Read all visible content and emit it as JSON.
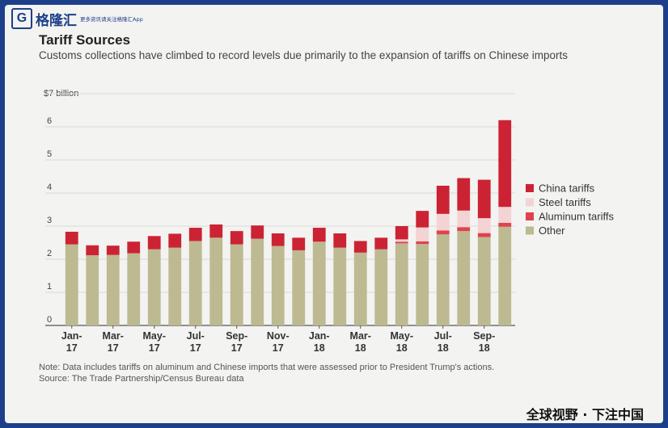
{
  "header": {
    "logo_mark": "G",
    "logo_name": "格隆汇",
    "logo_tagline": "更多资讯请关注格隆汇App",
    "logo_color": "#1d3f8a"
  },
  "footer": {
    "slogan": "全球视野 · 下注中国"
  },
  "chart_data": {
    "type": "bar",
    "stacked": true,
    "title": "Tariff Sources",
    "subtitle": "Customs collections have climbed to record levels due primarily to the expansion of tariffs on Chinese imports",
    "ylabel": "$7 billion",
    "ylim": [
      0,
      7
    ],
    "yticks": [
      "0",
      "1",
      "2",
      "3",
      "4",
      "5",
      "6"
    ],
    "grid": true,
    "legend_position": "right",
    "xtick_labels": [
      {
        "month": "Jan-",
        "year": "17",
        "index": 0
      },
      {
        "month": "Mar-",
        "year": "17",
        "index": 2
      },
      {
        "month": "May-",
        "year": "17",
        "index": 4
      },
      {
        "month": "Jul-",
        "year": "17",
        "index": 6
      },
      {
        "month": "Sep-",
        "year": "17",
        "index": 8
      },
      {
        "month": "Nov-",
        "year": "17",
        "index": 10
      },
      {
        "month": "Jan-",
        "year": "18",
        "index": 12
      },
      {
        "month": "Mar-",
        "year": "18",
        "index": 14
      },
      {
        "month": "May-",
        "year": "18",
        "index": 16
      },
      {
        "month": "Jul-",
        "year": "18",
        "index": 18
      },
      {
        "month": "Sep-",
        "year": "18",
        "index": 20
      }
    ],
    "categories": [
      "Jan-17",
      "Feb-17",
      "Mar-17",
      "Apr-17",
      "May-17",
      "Jun-17",
      "Jul-17",
      "Aug-17",
      "Sep-17",
      "Oct-17",
      "Nov-17",
      "Dec-17",
      "Jan-18",
      "Feb-18",
      "Mar-18",
      "Apr-18",
      "May-18",
      "Jun-18",
      "Jul-18",
      "Aug-18",
      "Sep-18",
      "Oct-18"
    ],
    "series": [
      {
        "name": "Other",
        "color": "#bdb991",
        "values": [
          2.45,
          2.12,
          2.13,
          2.18,
          2.3,
          2.35,
          2.55,
          2.65,
          2.45,
          2.62,
          2.4,
          2.27,
          2.53,
          2.35,
          2.2,
          2.3,
          2.48,
          2.46,
          2.75,
          2.85,
          2.67,
          2.98
        ]
      },
      {
        "name": "Aluminum tariffs",
        "color": "#e0424e",
        "values": [
          0,
          0,
          0,
          0,
          0,
          0,
          0,
          0,
          0,
          0,
          0,
          0,
          0,
          0,
          0,
          0,
          0.05,
          0.08,
          0.12,
          0.12,
          0.12,
          0.12
        ]
      },
      {
        "name": "Steel tariffs",
        "color": "#f3d3d3",
        "values": [
          0,
          0,
          0,
          0,
          0,
          0,
          0,
          0,
          0,
          0,
          0,
          0,
          0,
          0,
          0,
          0,
          0.07,
          0.42,
          0.5,
          0.5,
          0.45,
          0.48
        ]
      },
      {
        "name": "China tariffs",
        "color": "#cb2334",
        "values": [
          0.38,
          0.3,
          0.28,
          0.35,
          0.4,
          0.42,
          0.4,
          0.4,
          0.4,
          0.4,
          0.38,
          0.38,
          0.42,
          0.43,
          0.35,
          0.35,
          0.4,
          0.5,
          0.85,
          0.98,
          1.16,
          2.62
        ]
      }
    ],
    "legend_order": [
      "China tariffs",
      "Steel tariffs",
      "Aluminum tariffs",
      "Other"
    ],
    "note": "Note: Data includes tariffs on aluminum and Chinese imports that were assessed prior to President Trump's actions.",
    "source": "Source: The Trade Partnership/Census Bureau data"
  }
}
